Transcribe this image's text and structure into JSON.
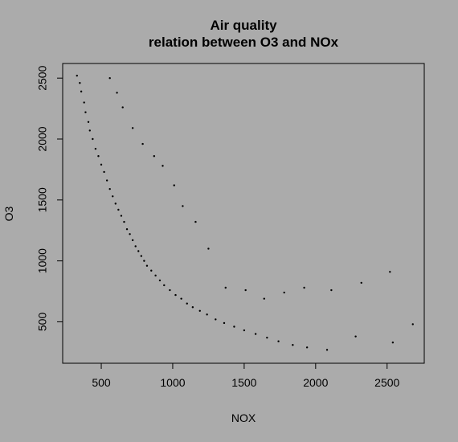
{
  "chart_data": {
    "type": "scatter",
    "title": "Air quality",
    "subtitle": "relation between O3 and NOx",
    "xlabel": "NOX",
    "ylabel": "O3",
    "xlim": [
      230,
      2760
    ],
    "ylim": [
      160,
      2620
    ],
    "x_ticks": [
      500,
      1000,
      1500,
      2000,
      2500
    ],
    "y_ticks": [
      500,
      1000,
      1500,
      2000,
      2500
    ],
    "grid": false,
    "legend": "none",
    "point_color": "#000000",
    "background_color": "#ababab",
    "series": [
      {
        "points": [
          [
            330,
            2520
          ],
          [
            350,
            2460
          ],
          [
            360,
            2390
          ],
          [
            380,
            2300
          ],
          [
            390,
            2220
          ],
          [
            410,
            2140
          ],
          [
            420,
            2070
          ],
          [
            440,
            2000
          ],
          [
            460,
            1920
          ],
          [
            480,
            1860
          ],
          [
            500,
            1790
          ],
          [
            520,
            1730
          ],
          [
            540,
            1660
          ],
          [
            560,
            1590
          ],
          [
            580,
            1530
          ],
          [
            600,
            1470
          ],
          [
            620,
            1420
          ],
          [
            640,
            1370
          ],
          [
            660,
            1320
          ],
          [
            680,
            1260
          ],
          [
            700,
            1220
          ],
          [
            720,
            1170
          ],
          [
            740,
            1120
          ],
          [
            760,
            1080
          ],
          [
            780,
            1040
          ],
          [
            800,
            1000
          ],
          [
            820,
            960
          ],
          [
            850,
            920
          ],
          [
            880,
            880
          ],
          [
            910,
            840
          ],
          [
            940,
            800
          ],
          [
            980,
            760
          ],
          [
            1020,
            720
          ],
          [
            1060,
            690
          ],
          [
            1100,
            650
          ],
          [
            1140,
            620
          ],
          [
            1190,
            590
          ],
          [
            1240,
            560
          ],
          [
            1300,
            520
          ],
          [
            1360,
            490
          ],
          [
            1430,
            460
          ],
          [
            1500,
            430
          ],
          [
            1580,
            400
          ],
          [
            1660,
            370
          ],
          [
            1740,
            340
          ],
          [
            1840,
            310
          ],
          [
            1940,
            290
          ],
          [
            2080,
            270
          ],
          [
            2280,
            380
          ],
          [
            2540,
            330
          ],
          [
            2680,
            480
          ],
          [
            2520,
            910
          ],
          [
            2320,
            820
          ],
          [
            2110,
            760
          ],
          [
            1920,
            780
          ],
          [
            1780,
            740
          ],
          [
            1640,
            690
          ],
          [
            1510,
            760
          ],
          [
            1370,
            780
          ],
          [
            1250,
            1100
          ],
          [
            1160,
            1320
          ],
          [
            1070,
            1450
          ],
          [
            1010,
            1620
          ],
          [
            930,
            1780
          ],
          [
            870,
            1860
          ],
          [
            790,
            1960
          ],
          [
            720,
            2090
          ],
          [
            650,
            2260
          ],
          [
            610,
            2380
          ],
          [
            560,
            2500
          ]
        ]
      }
    ]
  }
}
